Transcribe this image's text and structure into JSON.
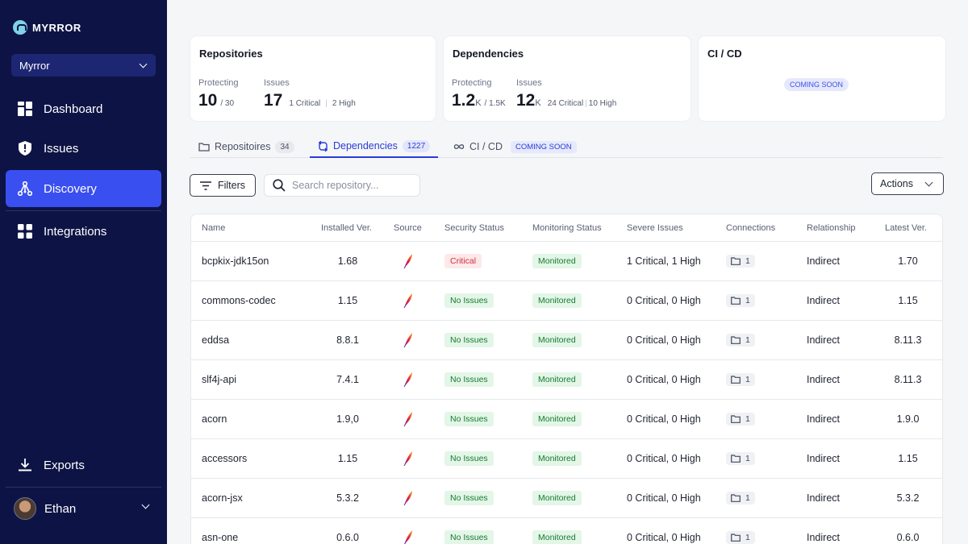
{
  "brand": {
    "name": "MYRROR"
  },
  "sidebar": {
    "org": "Myrror",
    "items": [
      {
        "label": "Dashboard",
        "icon": "dashboard-icon"
      },
      {
        "label": "Issues",
        "icon": "shield-icon"
      },
      {
        "label": "Discovery",
        "icon": "discovery-icon",
        "active": true
      },
      {
        "label": "Integrations",
        "icon": "integrations-icon"
      }
    ],
    "exports": "Exports",
    "user": "Ethan"
  },
  "cards": {
    "repositories": {
      "title": "Repositories",
      "protecting_label": "Protecting",
      "protecting_value": "10",
      "protecting_total": "/ 30",
      "issues_label": "Issues",
      "issues_value": "17",
      "issues_critical": "1 Critical",
      "issues_high": "2 High"
    },
    "dependencies": {
      "title": "Dependencies",
      "protecting_label": "Protecting",
      "protecting_value": "1.2",
      "protecting_unit": "K",
      "protecting_total": "/ 1.5K",
      "issues_label": "Issues",
      "issues_value": "12",
      "issues_unit": "K",
      "issues_critical": "24 Critical",
      "issues_high": "10 High"
    },
    "cicd": {
      "title": "CI / CD",
      "badge": "COMING SOON"
    }
  },
  "tabs": [
    {
      "label": "Repositoires",
      "count": "34"
    },
    {
      "label": "Dependencies",
      "count": "1227",
      "active": true
    },
    {
      "label": "CI / CD",
      "tag": "COMING SOON"
    }
  ],
  "controls": {
    "filters": "Filters",
    "search_placeholder": "Search repository...",
    "actions": "Actions"
  },
  "table": {
    "headers": [
      "Name",
      "Installed Ver.",
      "Source",
      "Security Status",
      "Monitoring Status",
      "Severe Issues",
      "Connections",
      "Relationship",
      "Latest Ver."
    ],
    "rows": [
      {
        "name": "bcpkix-jdk15on",
        "installed": "1.68",
        "security": "Critical",
        "monitoring": "Monitored",
        "severe": "1 Critical, 1 High",
        "connections": "1",
        "relationship": "Indirect",
        "latest": "1.70"
      },
      {
        "name": "commons-codec",
        "installed": "1.15",
        "security": "No Issues",
        "monitoring": "Monitored",
        "severe": "0 Critical, 0 High",
        "connections": "1",
        "relationship": "Indirect",
        "latest": "1.15"
      },
      {
        "name": "eddsa",
        "installed": "8.8.1",
        "security": "No Issues",
        "monitoring": "Monitored",
        "severe": "0 Critical, 0 High",
        "connections": "1",
        "relationship": "Indirect",
        "latest": "8.11.3"
      },
      {
        "name": "slf4j-api",
        "installed": "7.4.1",
        "security": "No Issues",
        "monitoring": "Monitored",
        "severe": "0 Critical, 0 High",
        "connections": "1",
        "relationship": "Indirect",
        "latest": "8.11.3"
      },
      {
        "name": "acorn",
        "installed": "1.9,0",
        "security": "No Issues",
        "monitoring": "Monitored",
        "severe": "0 Critical, 0 High",
        "connections": "1",
        "relationship": "Indirect",
        "latest": "1.9.0"
      },
      {
        "name": "accessors",
        "installed": "1.15",
        "security": "No Issues",
        "monitoring": "Monitored",
        "severe": "0 Critical, 0 High",
        "connections": "1",
        "relationship": "Indirect",
        "latest": "1.15"
      },
      {
        "name": "acorn-jsx",
        "installed": "5.3.2",
        "security": "No Issues",
        "monitoring": "Monitored",
        "severe": "0 Critical, 0 High",
        "connections": "1",
        "relationship": "Indirect",
        "latest": "5.3.2"
      },
      {
        "name": "asn-one",
        "installed": "0.6.0",
        "security": "No Issues",
        "monitoring": "Monitored",
        "severe": "0 Critical, 0 High",
        "connections": "1",
        "relationship": "Indirect",
        "latest": "0.6.0"
      }
    ]
  },
  "colors": {
    "sidebar": "#0d1445",
    "accent": "#3a4ff0",
    "critical": "#d22f3d",
    "ok": "#177a32"
  }
}
